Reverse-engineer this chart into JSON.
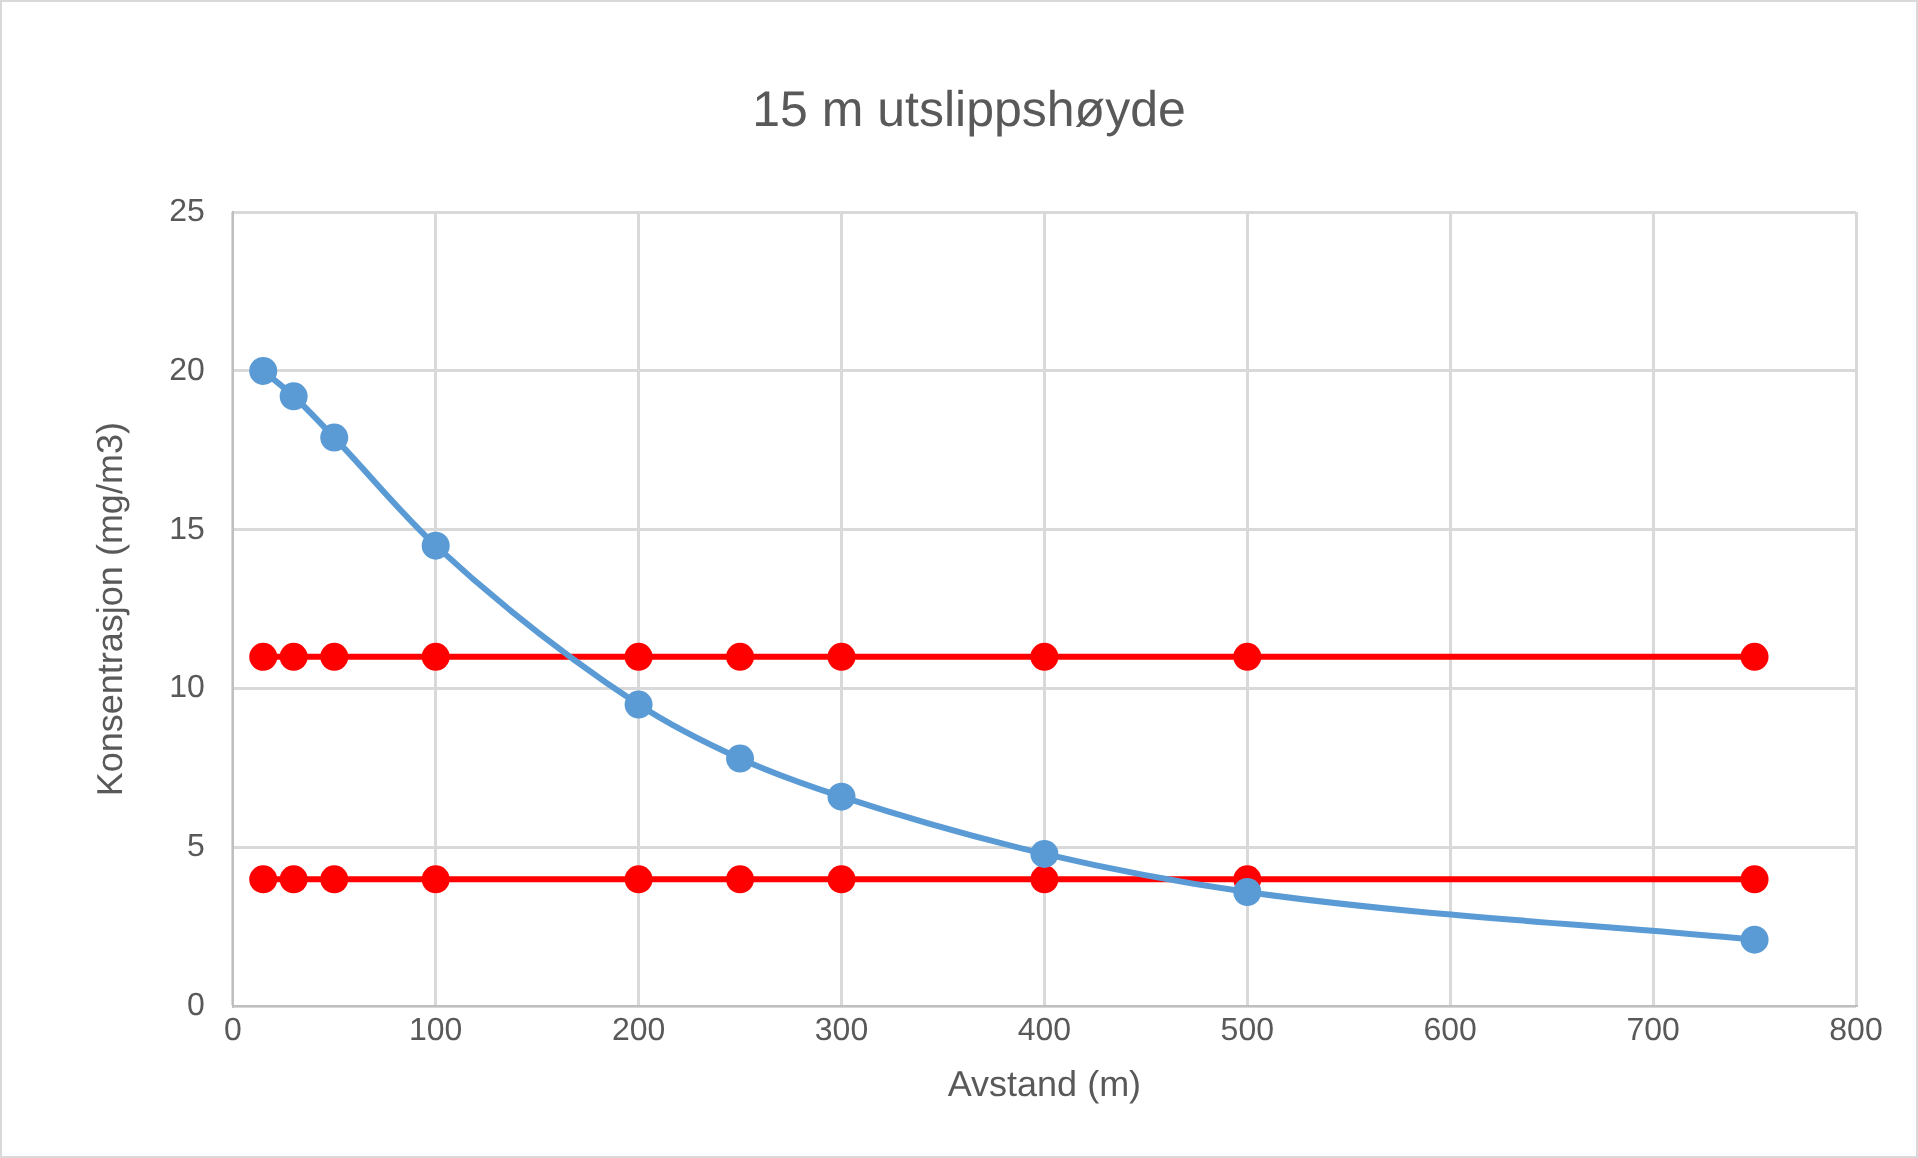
{
  "chart_data": {
    "type": "line",
    "title": "15 m utslippshøyde",
    "xlabel": "Avstand (m)",
    "ylabel": "Konsentrasjon (mg/m3)",
    "xlim": [
      0,
      800
    ],
    "xticks": [
      0,
      100,
      200,
      300,
      400,
      500,
      600,
      700,
      800
    ],
    "ylim": [
      0,
      25
    ],
    "yticks": [
      0,
      5,
      10,
      15,
      20,
      25
    ],
    "grid": true,
    "legend": false,
    "marker": "circle",
    "series": [
      {
        "color": "#5b9bd5",
        "x": [
          15,
          30,
          50,
          100,
          200,
          250,
          300,
          400,
          500,
          750
        ],
        "values": [
          20.0,
          19.2,
          17.9,
          14.5,
          9.5,
          7.8,
          6.6,
          4.8,
          3.6,
          2.1
        ]
      },
      {
        "color": "#ff0000",
        "x": [
          15,
          30,
          50,
          100,
          200,
          250,
          300,
          400,
          500,
          750
        ],
        "values": [
          11,
          11,
          11,
          11,
          11,
          11,
          11,
          11,
          11,
          11
        ]
      },
      {
        "color": "#ff0000",
        "x": [
          15,
          30,
          50,
          100,
          200,
          250,
          300,
          400,
          500,
          750
        ],
        "values": [
          4,
          4,
          4,
          4,
          4,
          4,
          4,
          4,
          4,
          4
        ]
      }
    ]
  }
}
